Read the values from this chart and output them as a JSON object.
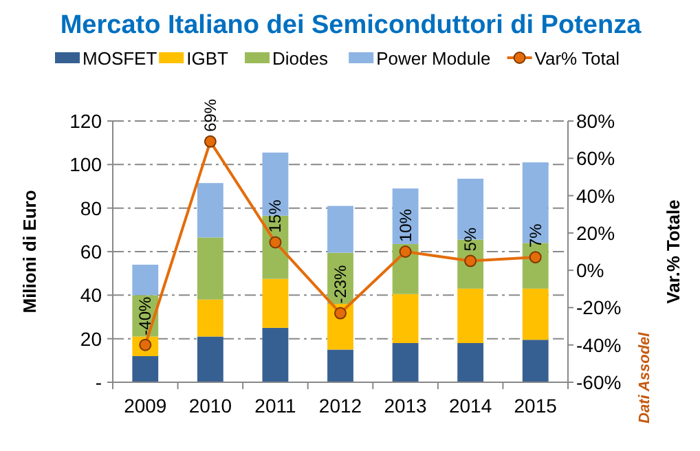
{
  "chart_data": {
    "type": "bar",
    "title": "Mercato Italiano dei Semiconduttori di Potenza",
    "ylabel": "Milioni di Euro",
    "y2label": "Var.% Totale",
    "stacked": true,
    "legend": "top",
    "grid": "y",
    "categories": [
      "2009",
      "2010",
      "2011",
      "2012",
      "2013",
      "2014",
      "2015"
    ],
    "series": [
      {
        "name": "MOSFET",
        "color": "#376092",
        "values": [
          12,
          21,
          25,
          15,
          18,
          18,
          19.5
        ]
      },
      {
        "name": "IGBT",
        "color": "#ffc000",
        "values": [
          9,
          17,
          22.5,
          21,
          22.5,
          25,
          23.5
        ]
      },
      {
        "name": "Diodes",
        "color": "#9bbb59",
        "values": [
          19,
          28.5,
          29,
          23.5,
          23,
          22.5,
          21
        ]
      },
      {
        "name": "Power Module",
        "color": "#8eb4e3",
        "values": [
          14,
          25,
          29,
          21.5,
          25.5,
          28,
          37
        ]
      },
      {
        "name": "Var% Total",
        "type": "line",
        "axis": "y2",
        "color": "#e46c0a",
        "marker": "circle",
        "values": [
          -40,
          69,
          15,
          -23,
          10,
          5,
          7
        ],
        "value_labels": [
          "-40%",
          "69%",
          "15%",
          "-23%",
          "10%",
          "5%",
          "7%"
        ]
      }
    ],
    "ylim": [
      0,
      120
    ],
    "yticks": [
      {
        "value": 0,
        "label": "-"
      },
      20,
      40,
      60,
      80,
      100,
      120
    ],
    "y2lim": [
      -60,
      80
    ],
    "y2ticks": [
      {
        "value": -60,
        "label": "-60%"
      },
      {
        "value": -40,
        "label": "-40%"
      },
      {
        "value": -20,
        "label": "-20%"
      },
      {
        "value": 0,
        "label": "0%"
      },
      {
        "value": 20,
        "label": "20%"
      },
      {
        "value": 40,
        "label": "40%"
      },
      {
        "value": 60,
        "label": "60%"
      },
      {
        "value": 80,
        "label": "80%"
      }
    ],
    "annotations": [
      "Dati Assodel"
    ]
  }
}
